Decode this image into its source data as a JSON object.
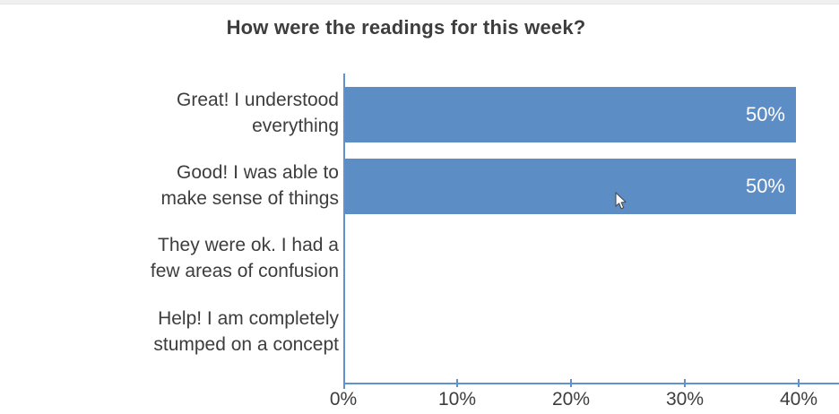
{
  "chart_data": {
    "type": "bar",
    "orientation": "horizontal",
    "title": "How were the readings for this week?",
    "categories": [
      "Great! I understood everything",
      "Good! I was able to make sense of things",
      "They were ok. I had a few areas of confusion",
      "Help! I am completely stumped on a concept"
    ],
    "categories_lines": [
      [
        "Great! I understood",
        "everything"
      ],
      [
        "Good! I was able to",
        "make sense of things"
      ],
      [
        "They were ok. I had a",
        "few areas of confusion"
      ],
      [
        "Help! I am completely",
        "stumped on a concept"
      ]
    ],
    "values": [
      50,
      50,
      0,
      0
    ],
    "value_labels": [
      "50%",
      "50%",
      "",
      ""
    ],
    "x_ticks": [
      "0%",
      "10%",
      "20%",
      "30%",
      "40%"
    ],
    "xlabel": "",
    "ylabel": "",
    "xlim": [
      0,
      43.5
    ],
    "grid": false,
    "legend": "none",
    "bar_color": "#5c8dc5",
    "axis_color": "#5e93cf",
    "text_color": "#3d3d3d",
    "value_label_color": "#ffffff",
    "background_color": "#ffffff"
  }
}
